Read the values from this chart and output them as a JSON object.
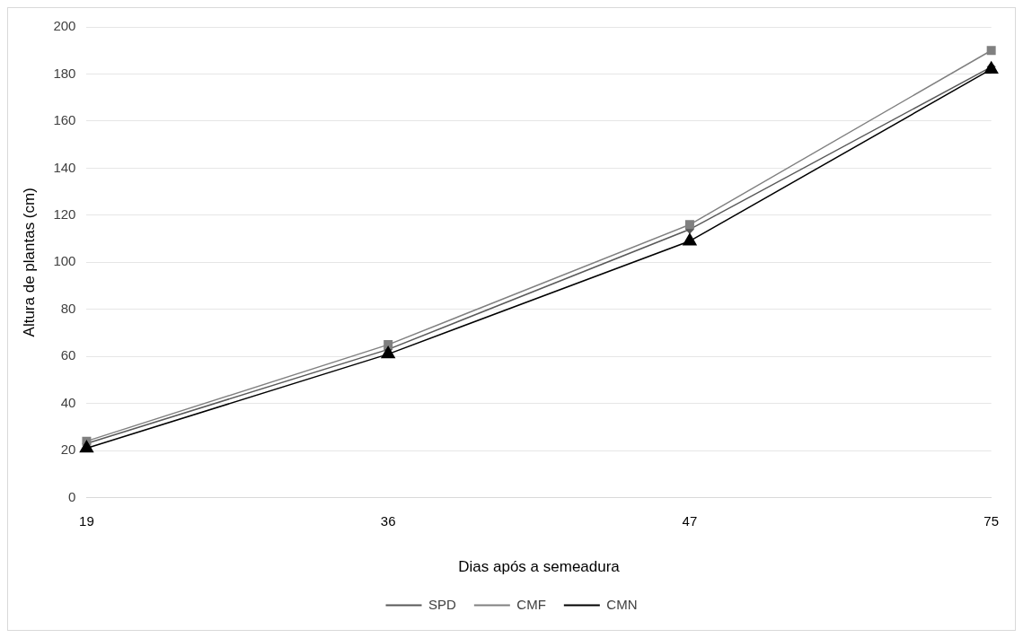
{
  "chart_data": {
    "type": "line",
    "xlabel": "Dias após a semeadura",
    "ylabel": "Altura de plantas (cm)",
    "categories": [
      "19",
      "36",
      "47",
      "75"
    ],
    "series": [
      {
        "name": "SPD",
        "color": "#595959",
        "marker": "diamond",
        "values": [
          23,
          63,
          114,
          183
        ]
      },
      {
        "name": "CMF",
        "color": "#808080",
        "marker": "square",
        "values": [
          24,
          65,
          116,
          190
        ]
      },
      {
        "name": "CMN",
        "color": "#000000",
        "marker": "triangle",
        "values": [
          21,
          61,
          109,
          182
        ]
      }
    ],
    "ylim": [
      0,
      200
    ],
    "yticks": [
      0,
      20,
      40,
      60,
      80,
      100,
      120,
      140,
      160,
      180,
      200
    ],
    "grid": "y",
    "legend": "bottom",
    "line_style": "solid"
  }
}
